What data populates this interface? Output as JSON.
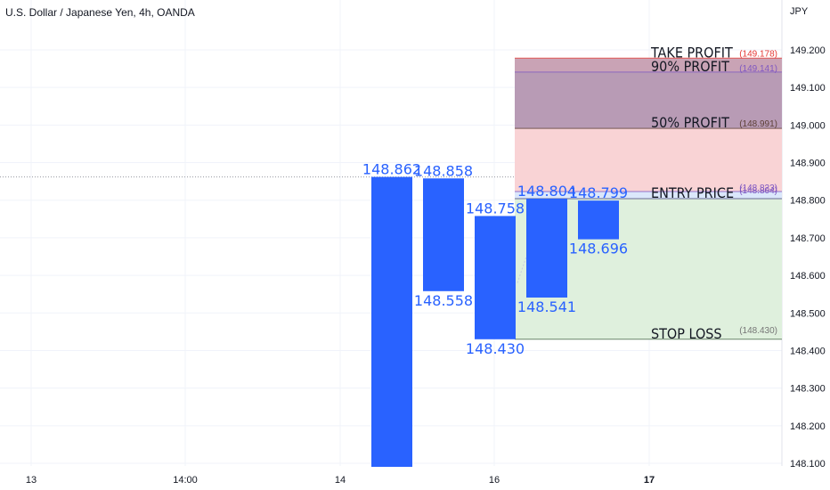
{
  "chart_data": {
    "type": "bar",
    "title": "U.S. Dollar / Japanese Yen, 4h, OANDA",
    "unit_label": "JPY",
    "ylim": [
      148.07,
      149.27
    ],
    "yticks": [
      "148.100",
      "148.200",
      "148.300",
      "148.400",
      "148.500",
      "148.600",
      "148.700",
      "148.800",
      "148.900",
      "149.000",
      "149.100",
      "149.200"
    ],
    "xticks": [
      "13",
      "14:00",
      "14",
      "16",
      "17"
    ],
    "grid": true,
    "bar_color": "#2962ff",
    "label_color": "#2962ff",
    "bars": [
      {
        "top": 148.862,
        "bottom": 148.07,
        "top_label": "148.862",
        "bottom_label": ""
      },
      {
        "top": 148.858,
        "bottom": 148.558,
        "top_label": "148.858",
        "bottom_label": "148.558"
      },
      {
        "top": 148.758,
        "bottom": 148.43,
        "top_label": "148.758",
        "bottom_label": "148.430"
      },
      {
        "top": 148.804,
        "bottom": 148.541,
        "top_label": "148.804",
        "bottom_label": "148.541"
      },
      {
        "top": 148.799,
        "bottom": 148.696,
        "top_label": "148.799",
        "bottom_label": "148.696"
      }
    ],
    "reference_price": 148.862,
    "levels": [
      {
        "name": "TAKE PROFIT",
        "value": 149.178,
        "value_label": "(149.178)",
        "value_color": "#e53935"
      },
      {
        "name": "90% PROFIT",
        "value": 149.141,
        "value_label": "(149.141)",
        "value_color": "#7e57c2"
      },
      {
        "name": "50% PROFIT",
        "value": 148.991,
        "value_label": "(148.991)",
        "value_color": "#5d4037"
      },
      {
        "name": "",
        "value": 148.823,
        "value_label": "(148.823)",
        "value_color": "#7e57c2"
      },
      {
        "name": "ENTRY PRICE",
        "value": 148.804,
        "value_label": "(148.804)",
        "value_color": "#7e57c2"
      },
      {
        "name": "STOP LOSS",
        "value": 148.43,
        "value_label": "(148.430)",
        "value_color": "#757575"
      }
    ],
    "zone_colors": {
      "take_profit_band": "#c9a3b5",
      "upper_profit_band": "#b89bb5",
      "lower_profit_band": "#f9d3d5",
      "entry_band": "#dbe7fb",
      "stop_band": "#dff0dd"
    }
  }
}
